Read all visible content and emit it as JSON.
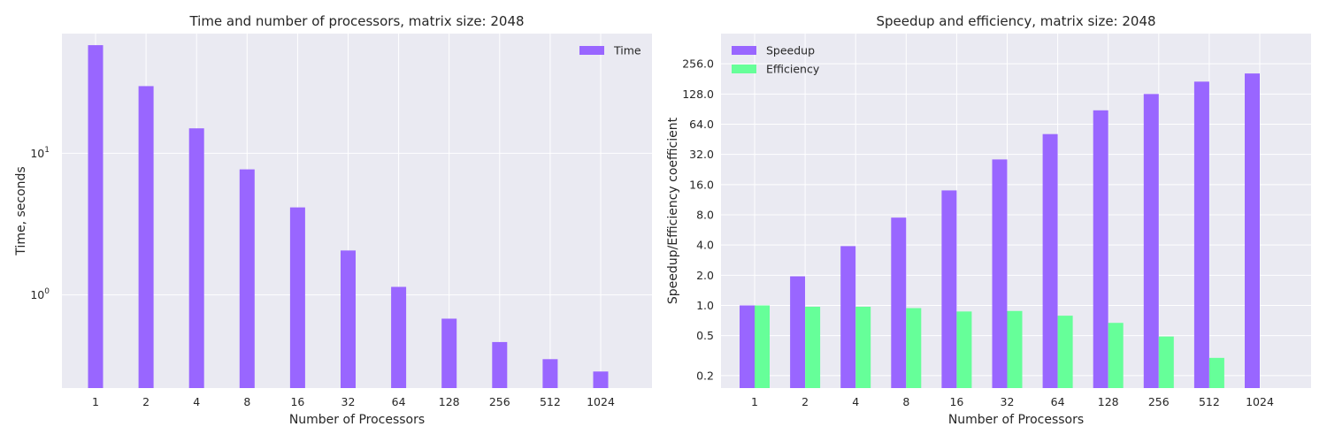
{
  "chart_data": [
    {
      "type": "bar",
      "title": "Time and number of processors, matrix size: 2048",
      "xlabel": "Number of Processors",
      "ylabel": "Time, seconds",
      "yscale": "log",
      "ylim": [
        0.22,
        70
      ],
      "y_ticks": [
        {
          "value": 1,
          "base": "10",
          "exp": "0"
        },
        {
          "value": 10,
          "base": "10",
          "exp": "1"
        }
      ],
      "categories": [
        "1",
        "2",
        "4",
        "8",
        "16",
        "32",
        "64",
        "128",
        "256",
        "512",
        "1024"
      ],
      "series": [
        {
          "name": "Time",
          "color": "#9966ff",
          "values": [
            58.0,
            29.8,
            15.0,
            7.7,
            4.15,
            2.06,
            1.14,
            0.68,
            0.465,
            0.352,
            0.288
          ]
        }
      ],
      "grid": true,
      "legend_position": "top-right"
    },
    {
      "type": "bar",
      "title": "Speedup and efficiency, matrix size: 2048",
      "xlabel": "Number of Processors",
      "ylabel": "Speedup/Efficiency coefficient",
      "yscale": "log2",
      "ylim": [
        0.15,
        512
      ],
      "y_ticks": [
        "0.2",
        "0.5",
        "1.0",
        "2.0",
        "4.0",
        "8.0",
        "16.0",
        "32.0",
        "64.0",
        "128.0",
        "256.0"
      ],
      "categories": [
        "1",
        "2",
        "4",
        "8",
        "16",
        "32",
        "64",
        "128",
        "256",
        "512",
        "1024"
      ],
      "series": [
        {
          "name": "Speedup",
          "color": "#9966ff",
          "values": [
            1.0,
            1.95,
            3.9,
            7.5,
            14.0,
            28.5,
            51.0,
            88.0,
            128.0,
            170.0,
            205.0
          ]
        },
        {
          "name": "Efficiency",
          "color": "#66ff99",
          "values": [
            1.0,
            0.97,
            0.97,
            0.94,
            0.87,
            0.88,
            0.79,
            0.67,
            0.49,
            0.3,
            null
          ]
        }
      ],
      "grid": true,
      "legend_position": "top-left"
    }
  ]
}
